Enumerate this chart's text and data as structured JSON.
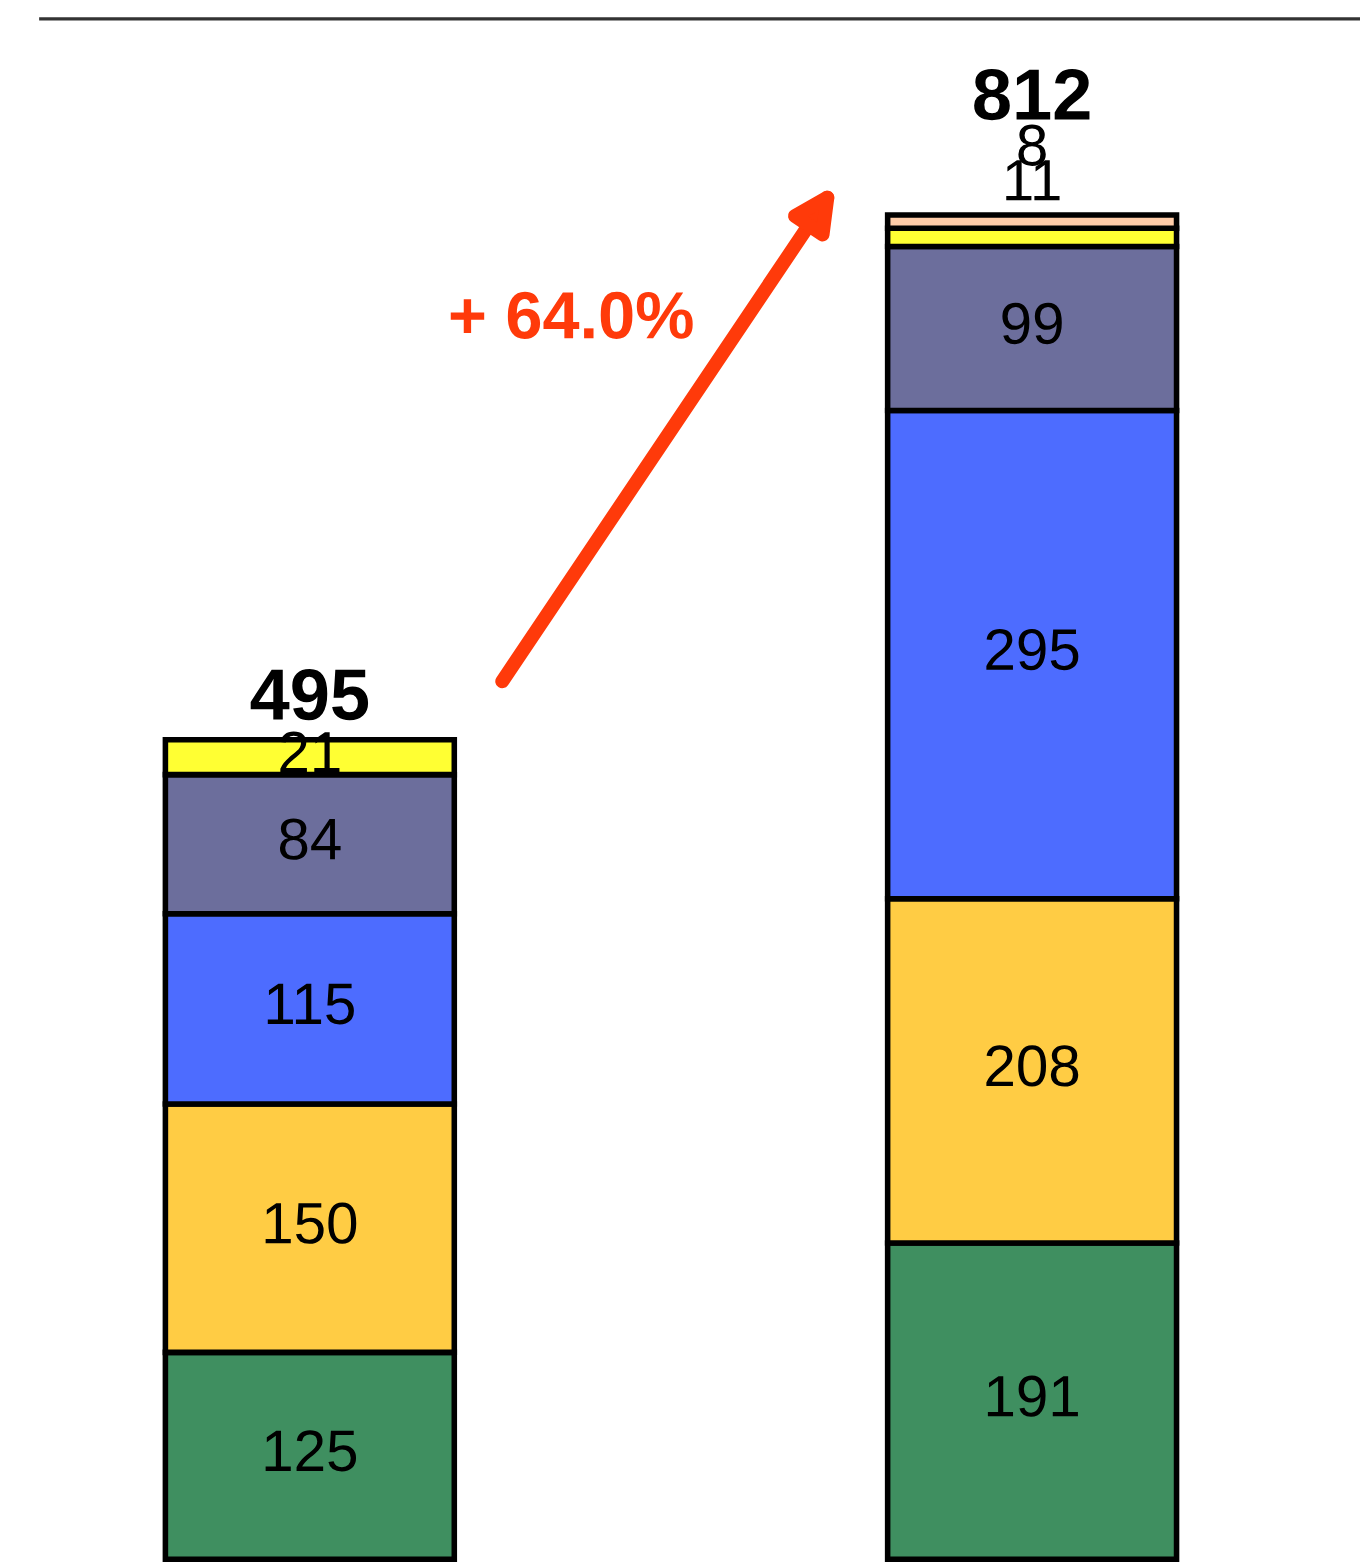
{
  "chart_data": {
    "type": "bar",
    "stacked": true,
    "categories": [
      null,
      null
    ],
    "series": [
      {
        "color": "#3f8f60",
        "values": [
          125,
          191
        ]
      },
      {
        "color": "#ffcc44",
        "values": [
          150,
          208
        ]
      },
      {
        "color": "#4d6cff",
        "values": [
          115,
          295
        ]
      },
      {
        "color": "#6c6e9c",
        "values": [
          84,
          99
        ]
      },
      {
        "color": "#ffff33",
        "values": [
          21,
          11
        ]
      },
      {
        "color": "#ffcca8",
        "values": [
          null,
          8
        ]
      }
    ],
    "data_labels": true,
    "totals": [
      "495",
      "812"
    ],
    "annotations": [
      "+ 64.0%"
    ],
    "grid": false
  }
}
